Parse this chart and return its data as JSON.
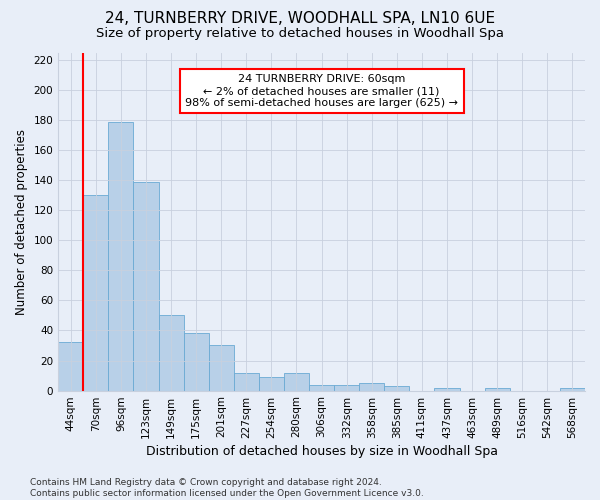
{
  "title": "24, TURNBERRY DRIVE, WOODHALL SPA, LN10 6UE",
  "subtitle": "Size of property relative to detached houses in Woodhall Spa",
  "xlabel": "Distribution of detached houses by size in Woodhall Spa",
  "ylabel": "Number of detached properties",
  "footer_line1": "Contains HM Land Registry data © Crown copyright and database right 2024.",
  "footer_line2": "Contains public sector information licensed under the Open Government Licence v3.0.",
  "bar_labels": [
    "44sqm",
    "70sqm",
    "96sqm",
    "123sqm",
    "149sqm",
    "175sqm",
    "201sqm",
    "227sqm",
    "254sqm",
    "280sqm",
    "306sqm",
    "332sqm",
    "358sqm",
    "385sqm",
    "411sqm",
    "437sqm",
    "463sqm",
    "489sqm",
    "516sqm",
    "542sqm",
    "568sqm"
  ],
  "bar_values": [
    32,
    130,
    179,
    139,
    50,
    38,
    30,
    12,
    9,
    12,
    4,
    4,
    5,
    3,
    0,
    2,
    0,
    2,
    0,
    0,
    2
  ],
  "bar_color": "#b8d0e8",
  "bar_edge_color": "#6aaad4",
  "vline_color": "red",
  "vline_x_index": 1,
  "annotation_line1": "24 TURNBERRY DRIVE: 60sqm",
  "annotation_line2": "← 2% of detached houses are smaller (11)",
  "annotation_line3": "98% of semi-detached houses are larger (625) →",
  "annotation_box_color": "white",
  "annotation_box_edge": "red",
  "ylim": [
    0,
    225
  ],
  "yticks": [
    0,
    20,
    40,
    60,
    80,
    100,
    120,
    140,
    160,
    180,
    200,
    220
  ],
  "background_color": "#e8eef8",
  "grid_color": "#c8d0de",
  "title_fontsize": 11,
  "subtitle_fontsize": 9.5,
  "xlabel_fontsize": 9,
  "ylabel_fontsize": 8.5,
  "tick_fontsize": 7.5,
  "annotation_fontsize": 8,
  "footer_fontsize": 6.5
}
